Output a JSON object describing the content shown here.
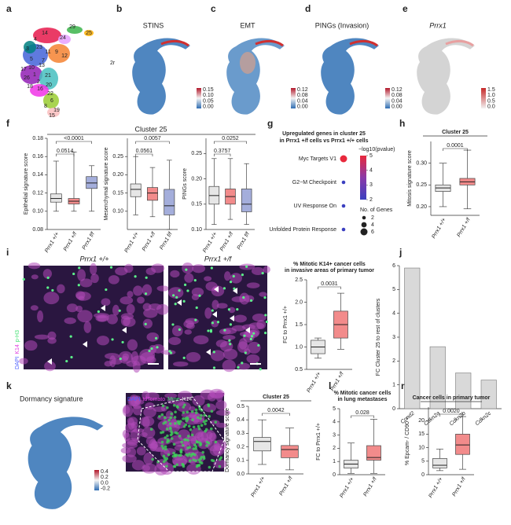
{
  "figure": {
    "a": {
      "label": "a",
      "clusters": [
        "29",
        "25",
        "14",
        "4",
        "24",
        "3",
        "23",
        "11",
        "9",
        "12",
        "5",
        "7",
        "17",
        "10",
        "13",
        "1",
        "26",
        "2",
        "21",
        "18",
        "20",
        "16",
        "22",
        "6",
        "8",
        "19",
        "15"
      ]
    },
    "b": {
      "label": "b",
      "title": "STINS",
      "note": "2r",
      "colorbar": [
        "0.15",
        "0.10",
        "0.05",
        "0.00"
      ]
    },
    "c": {
      "label": "c",
      "title": "EMT",
      "colorbar": [
        "0.12",
        "0.08",
        "0.04",
        "0.00"
      ]
    },
    "d": {
      "label": "d",
      "title": "PINGs (Invasion)",
      "colorbar": [
        "0.12",
        "0.08",
        "0.04",
        "0.00"
      ]
    },
    "e": {
      "label": "e",
      "title": "Prrx1",
      "colorbar": [
        "1.5",
        "1.0",
        "0.5",
        "0.0"
      ]
    },
    "f": {
      "label": "f",
      "title": "Cluster 25"
    },
    "g": {
      "label": "g"
    },
    "h": {
      "label": "h"
    },
    "i": {
      "label": "i",
      "left": "Prrx1 +/+",
      "right": "Prrx1 +/f",
      "stain": [
        "DAPI",
        "K14",
        "p-H3"
      ]
    },
    "j": {
      "label": "j"
    },
    "k": {
      "label": "k",
      "title": "Dormancy signature",
      "colorbar": [
        "0.4",
        "0.2",
        "0.0",
        "-0.2"
      ],
      "stain": [
        "DAPI",
        "tdTomato",
        "Mme",
        "K14"
      ]
    },
    "l": {
      "label": "l"
    },
    "m": {
      "label": "m"
    }
  },
  "chart_data": [
    {
      "type": "box",
      "ylabel": "Epithelial signature score",
      "categories": [
        "Prrx1 +/+",
        "Prrx1 +/f",
        "Prrx1 f/f"
      ],
      "colors": [
        "#e6e6e6",
        "#f28b8b",
        "#a4aedb"
      ],
      "boxes": [
        {
          "min": 0.1,
          "q1": 0.11,
          "median": 0.114,
          "q3": 0.119,
          "max": 0.155
        },
        {
          "min": 0.1,
          "q1": 0.108,
          "median": 0.111,
          "q3": 0.114,
          "max": 0.165
        },
        {
          "min": 0.1,
          "q1": 0.125,
          "median": 0.131,
          "q3": 0.138,
          "max": 0.15
        }
      ],
      "annotations": [
        "<0.0001",
        "0.0514"
      ],
      "ylim": [
        0.08,
        0.18
      ],
      "yticks": [
        {
          "value": 0.08,
          "label": "0.08"
        },
        {
          "value": 0.1,
          "label": "0.10"
        },
        {
          "value": 0.12,
          "label": "0.12"
        },
        {
          "value": 0.14,
          "label": "0.14"
        },
        {
          "value": 0.16,
          "label": "0.16"
        },
        {
          "value": 0.18,
          "label": "0.18"
        }
      ]
    },
    {
      "type": "box",
      "ylabel": "Mesenchymal signature score",
      "categories": [
        "Prrx1 +/+",
        "Prrx1 +/f",
        "Prrx1 f/f"
      ],
      "colors": [
        "#e6e6e6",
        "#f28b8b",
        "#a4aedb"
      ],
      "boxes": [
        {
          "min": 0.09,
          "q1": 0.14,
          "median": 0.16,
          "q3": 0.175,
          "max": 0.25
        },
        {
          "min": 0.085,
          "q1": 0.13,
          "median": 0.15,
          "q3": 0.165,
          "max": 0.22
        },
        {
          "min": 0.05,
          "q1": 0.09,
          "median": 0.115,
          "q3": 0.16,
          "max": 0.24
        }
      ],
      "annotations": [
        "0.0057",
        "0.0561"
      ],
      "ylim": [
        0.05,
        0.3
      ],
      "yticks": [
        {
          "value": 0.1,
          "label": "0.10"
        },
        {
          "value": 0.15,
          "label": "0.15"
        },
        {
          "value": 0.2,
          "label": "0.20"
        },
        {
          "value": 0.25,
          "label": "0.25"
        }
      ]
    },
    {
      "type": "box",
      "ylabel": "PINGs score",
      "categories": [
        "Prrx1 +/+",
        "Prrx1 +/f",
        "Prrx1 f/f"
      ],
      "colors": [
        "#e6e6e6",
        "#f28b8b",
        "#a4aedb"
      ],
      "boxes": [
        {
          "min": 0.11,
          "q1": 0.15,
          "median": 0.167,
          "q3": 0.185,
          "max": 0.24
        },
        {
          "min": 0.12,
          "q1": 0.15,
          "median": 0.165,
          "q3": 0.18,
          "max": 0.24
        },
        {
          "min": 0.11,
          "q1": 0.135,
          "median": 0.15,
          "q3": 0.18,
          "max": 0.23
        }
      ],
      "annotations": [
        "0.0252",
        "0.3757"
      ],
      "ylim": [
        0.1,
        0.28
      ],
      "yticks": [
        {
          "value": 0.1,
          "label": "0.10"
        },
        {
          "value": 0.15,
          "label": "0.15"
        },
        {
          "value": 0.2,
          "label": "0.20"
        },
        {
          "value": 0.25,
          "label": "0.25"
        }
      ]
    },
    {
      "type": "dot",
      "title": [
        "Upregulated genes in cluster 25",
        "in Prrx1 +/f cells vs Prrx1 +/+ cells"
      ],
      "categories": [
        "Myc Targets V1",
        "G2−M Checkpoint",
        "UV Response On",
        "Unfolded Protein Response"
      ],
      "values": [
        5,
        2,
        1.8,
        1.8
      ],
      "sizes": [
        6,
        2,
        2,
        2
      ],
      "clabel": "−log10(pvalue)",
      "cticks": [
        2,
        3,
        4,
        5
      ],
      "size_label": "No. of Genes",
      "size_ticks": [
        2,
        4,
        6
      ]
    },
    {
      "type": "box",
      "title": [
        "Cluster 25"
      ],
      "ylabel": "Mitosis signature score",
      "categories": [
        "Prrx1 +/+",
        "Prrx1 +/f"
      ],
      "colors": [
        "#e6e6e6",
        "#f28b8b"
      ],
      "boxes": [
        {
          "min": 0.2,
          "q1": 0.235,
          "median": 0.243,
          "q3": 0.25,
          "max": 0.3
        },
        {
          "min": 0.195,
          "q1": 0.25,
          "median": 0.257,
          "q3": 0.265,
          "max": 0.33
        }
      ],
      "annotations": [
        "0.0001"
      ],
      "ylim": [
        0.18,
        0.35
      ],
      "yticks": [
        {
          "value": 0.2,
          "label": "0.20"
        },
        {
          "value": 0.25,
          "label": "0.25"
        },
        {
          "value": 0.3,
          "label": "0.30"
        }
      ]
    },
    {
      "type": "box",
      "title": [
        "% Mitotic K14+ cancer cells",
        "in invasive areas of primary tumor"
      ],
      "ylabel": "FC to Prrx1 +/+",
      "categories": [
        "Prrx1 +/+",
        "Prrx1 +/f"
      ],
      "colors": [
        "#e6e6e6",
        "#f28b8b"
      ],
      "boxes": [
        {
          "min": 0.75,
          "q1": 0.85,
          "median": 1,
          "q3": 1.15,
          "max": 1.2
        },
        {
          "min": 0.95,
          "q1": 1.2,
          "median": 1.5,
          "q3": 1.8,
          "max": 2.2
        }
      ],
      "annotations": [
        "0.0031"
      ],
      "ylim": [
        0.5,
        2.5
      ],
      "yticks": [
        0.5,
        {
          "value": 1,
          "label": "1.0"
        },
        1.5,
        {
          "value": 2,
          "label": "2.0"
        },
        2.5
      ]
    },
    {
      "type": "bar",
      "ylabel": "FC Cluster 25 to rest of clusters",
      "categories": [
        "Ccnd2",
        "Cdkn2a",
        "Cdkn2b",
        "Cdkn2c"
      ],
      "values": [
        5.9,
        2.6,
        1.5,
        1.2
      ],
      "color": "#d9d9d9",
      "ylim": [
        0,
        6
      ],
      "yticks": [
        0,
        1,
        2,
        3,
        4,
        5,
        6
      ]
    },
    {
      "type": "box",
      "title": [
        "Cluster 25"
      ],
      "ylabel": "Dormancy signature score",
      "categories": [
        "Prrx1 +/+",
        "Prrx1 +/f"
      ],
      "colors": [
        "#e6e6e6",
        "#f28b8b"
      ],
      "boxes": [
        {
          "min": 0.07,
          "q1": 0.17,
          "median": 0.24,
          "q3": 0.27,
          "max": 0.4
        },
        {
          "min": 0.03,
          "q1": 0.12,
          "median": 0.18,
          "q3": 0.21,
          "max": 0.34
        }
      ],
      "annotations": [
        "0.0042"
      ],
      "ylim": [
        0,
        0.5
      ],
      "yticks": [
        {
          "value": 0,
          "label": "0.0"
        },
        0.1,
        0.2,
        0.3,
        0.4,
        0.5
      ]
    },
    {
      "type": "box",
      "title": [
        "% Mitotic cancer cells",
        "in lung metastases"
      ],
      "ylabel": "FC to Prrx1 +/+",
      "categories": [
        "Prrx1 +/+",
        "Prrx1 +/f"
      ],
      "colors": [
        "#e6e6e6",
        "#f28b8b"
      ],
      "boxes": [
        {
          "min": 0.1,
          "q1": 0.5,
          "median": 0.8,
          "q3": 1.1,
          "max": 2.4
        },
        {
          "min": 0.1,
          "q1": 1.1,
          "median": 1.3,
          "q3": 2.2,
          "max": 4.2
        }
      ],
      "annotations": [
        "0.028"
      ],
      "ylim": [
        0,
        5
      ],
      "yticks": [
        0,
        1,
        2,
        3,
        4,
        5
      ]
    },
    {
      "type": "box",
      "title": [
        "Cancer cells in primary tumor"
      ],
      "ylabel": "% Epcam- / CD90 +",
      "categories": [
        "Prrx1 +/+",
        "Prrx1 +/f"
      ],
      "colors": [
        "#e6e6e6",
        "#f28b8b"
      ],
      "boxes": [
        {
          "min": 1.5,
          "q1": 2.5,
          "median": 3.5,
          "q3": 6,
          "max": 9.5
        },
        {
          "min": 2,
          "q1": 7.5,
          "median": 11,
          "q3": 15,
          "max": 21.5
        }
      ],
      "annotations": [
        "0.0020"
      ],
      "ylim": [
        0,
        25
      ],
      "yticks": [
        0,
        5,
        10,
        15,
        20
      ]
    }
  ]
}
